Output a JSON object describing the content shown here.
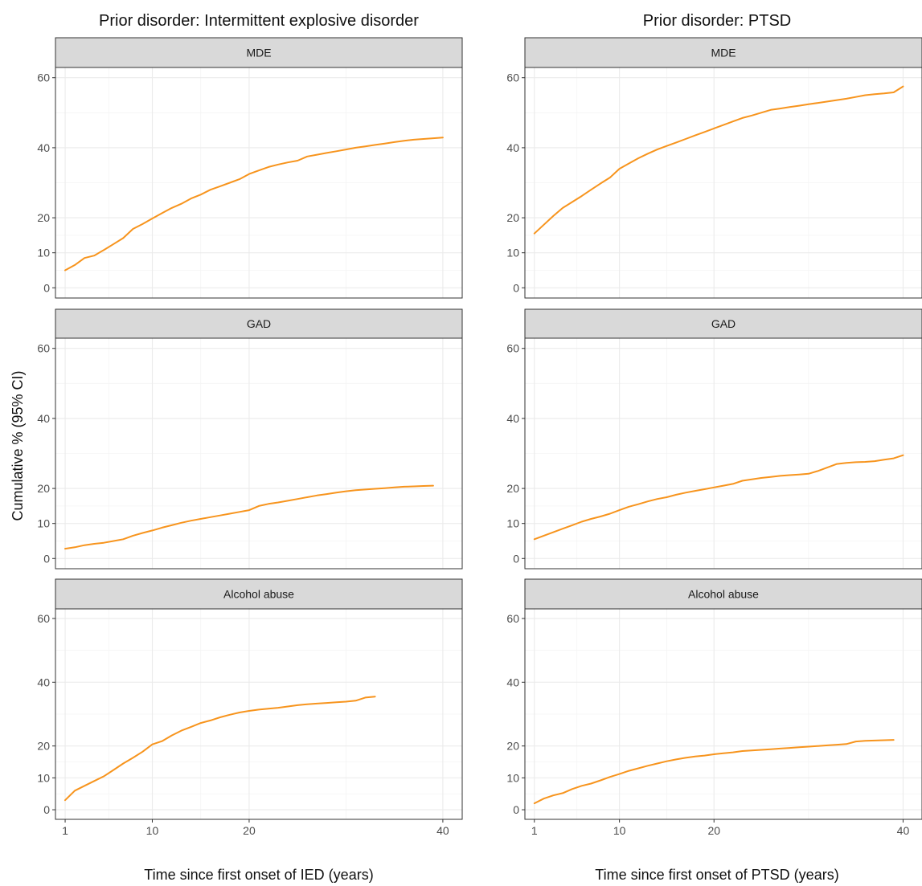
{
  "figure": {
    "y_axis_label": "Cumulative % (95% CI)"
  },
  "chart_data": [
    {
      "type": "line",
      "title": "Prior disorder: Intermittent explosive disorder",
      "xlabel": "Time since first onset of IED (years)",
      "ylabel": "Cumulative % (95% CI)",
      "x_ticks": [
        1,
        10,
        20,
        40
      ],
      "y_ticks": [
        0,
        10,
        20,
        40,
        60
      ],
      "xlim": [
        0,
        42
      ],
      "ylim": [
        -2,
        62
      ],
      "grid": true,
      "line_color": "#f7941d",
      "panels": [
        {
          "strip": "MDE",
          "x": [
            1,
            2,
            3,
            4,
            5,
            6,
            7,
            8,
            9,
            10,
            11,
            12,
            13,
            14,
            15,
            16,
            17,
            18,
            19,
            20,
            21,
            22,
            23,
            24,
            25,
            26,
            27,
            28,
            29,
            30,
            31,
            32,
            33,
            34,
            35,
            36,
            37,
            38,
            39,
            40
          ],
          "y": [
            5,
            6.5,
            8.5,
            9.2,
            10.8,
            12.5,
            14.2,
            16.8,
            18.2,
            19.8,
            21.3,
            22.8,
            24.0,
            25.5,
            26.6,
            28.0,
            29.0,
            30.0,
            31.0,
            32.5,
            33.5,
            34.5,
            35.2,
            35.8,
            36.3,
            37.5,
            38.0,
            38.5,
            39.0,
            39.5,
            40.0,
            40.4,
            40.8,
            41.2,
            41.6,
            42.0,
            42.3,
            42.5,
            42.7,
            42.9
          ]
        },
        {
          "strip": "GAD",
          "x": [
            1,
            2,
            3,
            4,
            5,
            6,
            7,
            8,
            9,
            10,
            11,
            12,
            13,
            14,
            15,
            16,
            17,
            18,
            19,
            20,
            21,
            22,
            23,
            24,
            25,
            26,
            27,
            28,
            29,
            30,
            31,
            32,
            33,
            34,
            35,
            36,
            37,
            38,
            39
          ],
          "y": [
            2.8,
            3.2,
            3.8,
            4.2,
            4.5,
            5.0,
            5.5,
            6.5,
            7.3,
            8.0,
            8.8,
            9.5,
            10.2,
            10.8,
            11.3,
            11.8,
            12.3,
            12.8,
            13.3,
            13.8,
            15.0,
            15.6,
            16.0,
            16.5,
            17.0,
            17.5,
            18.0,
            18.4,
            18.8,
            19.2,
            19.5,
            19.7,
            19.9,
            20.1,
            20.3,
            20.5,
            20.6,
            20.7,
            20.8
          ]
        },
        {
          "strip": "Alcohol abuse",
          "x": [
            1,
            2,
            3,
            4,
            5,
            6,
            7,
            8,
            9,
            10,
            11,
            12,
            13,
            14,
            15,
            16,
            17,
            18,
            19,
            20,
            21,
            22,
            23,
            24,
            25,
            26,
            27,
            28,
            29,
            30,
            31,
            32,
            33
          ],
          "y": [
            3.0,
            6.0,
            7.5,
            9.0,
            10.5,
            12.5,
            14.5,
            16.3,
            18.2,
            20.5,
            21.5,
            23.3,
            24.8,
            26.0,
            27.2,
            28.0,
            29.0,
            29.8,
            30.5,
            31.0,
            31.4,
            31.7,
            32.0,
            32.4,
            32.8,
            33.1,
            33.3,
            33.5,
            33.7,
            33.9,
            34.2,
            35.2,
            35.5
          ]
        }
      ]
    },
    {
      "type": "line",
      "title": "Prior disorder: PTSD",
      "xlabel": "Time since first onset of PTSD (years)",
      "ylabel": "Cumulative % (95% CI)",
      "x_ticks": [
        1,
        10,
        20,
        40
      ],
      "y_ticks": [
        0,
        10,
        20,
        40,
        60
      ],
      "xlim": [
        0,
        42
      ],
      "ylim": [
        -2,
        62
      ],
      "grid": true,
      "line_color": "#f7941d",
      "panels": [
        {
          "strip": "MDE",
          "x": [
            1,
            2,
            3,
            4,
            5,
            6,
            7,
            8,
            9,
            10,
            11,
            12,
            13,
            14,
            15,
            16,
            17,
            18,
            19,
            20,
            21,
            22,
            23,
            24,
            25,
            26,
            27,
            28,
            29,
            30,
            31,
            32,
            33,
            34,
            35,
            36,
            37,
            38,
            39,
            40
          ],
          "y": [
            15.5,
            18.0,
            20.5,
            22.8,
            24.5,
            26.2,
            28.0,
            29.8,
            31.5,
            34.0,
            35.5,
            37.0,
            38.3,
            39.5,
            40.5,
            41.5,
            42.5,
            43.5,
            44.5,
            45.5,
            46.5,
            47.5,
            48.5,
            49.2,
            50.0,
            50.8,
            51.2,
            51.6,
            52.0,
            52.4,
            52.8,
            53.2,
            53.6,
            54.0,
            54.5,
            55.0,
            55.3,
            55.5,
            55.8,
            57.5
          ]
        },
        {
          "strip": "GAD",
          "x": [
            1,
            2,
            3,
            4,
            5,
            6,
            7,
            8,
            9,
            10,
            11,
            12,
            13,
            14,
            15,
            16,
            17,
            18,
            19,
            20,
            21,
            22,
            23,
            24,
            25,
            26,
            27,
            28,
            29,
            30,
            31,
            32,
            33,
            34,
            35,
            36,
            37,
            38,
            39,
            40
          ],
          "y": [
            5.5,
            6.5,
            7.5,
            8.5,
            9.5,
            10.5,
            11.3,
            12.0,
            12.8,
            13.8,
            14.8,
            15.5,
            16.3,
            17.0,
            17.5,
            18.2,
            18.8,
            19.3,
            19.8,
            20.3,
            20.8,
            21.3,
            22.2,
            22.6,
            23.0,
            23.3,
            23.6,
            23.8,
            24.0,
            24.2,
            25.0,
            26.0,
            27.0,
            27.3,
            27.5,
            27.6,
            27.8,
            28.2,
            28.6,
            29.5
          ]
        },
        {
          "strip": "Alcohol abuse",
          "x": [
            1,
            2,
            3,
            4,
            5,
            6,
            7,
            8,
            9,
            10,
            11,
            12,
            13,
            14,
            15,
            16,
            17,
            18,
            19,
            20,
            21,
            22,
            23,
            24,
            25,
            26,
            27,
            28,
            29,
            30,
            31,
            32,
            33,
            34,
            35,
            36,
            37,
            38,
            39
          ],
          "y": [
            2.0,
            3.5,
            4.5,
            5.2,
            6.5,
            7.5,
            8.2,
            9.2,
            10.3,
            11.2,
            12.2,
            13.0,
            13.8,
            14.5,
            15.2,
            15.8,
            16.3,
            16.7,
            17.0,
            17.4,
            17.7,
            18.0,
            18.4,
            18.6,
            18.8,
            19.0,
            19.2,
            19.4,
            19.6,
            19.8,
            20.0,
            20.2,
            20.4,
            20.6,
            21.4,
            21.6,
            21.7,
            21.8,
            21.9
          ]
        }
      ]
    }
  ]
}
